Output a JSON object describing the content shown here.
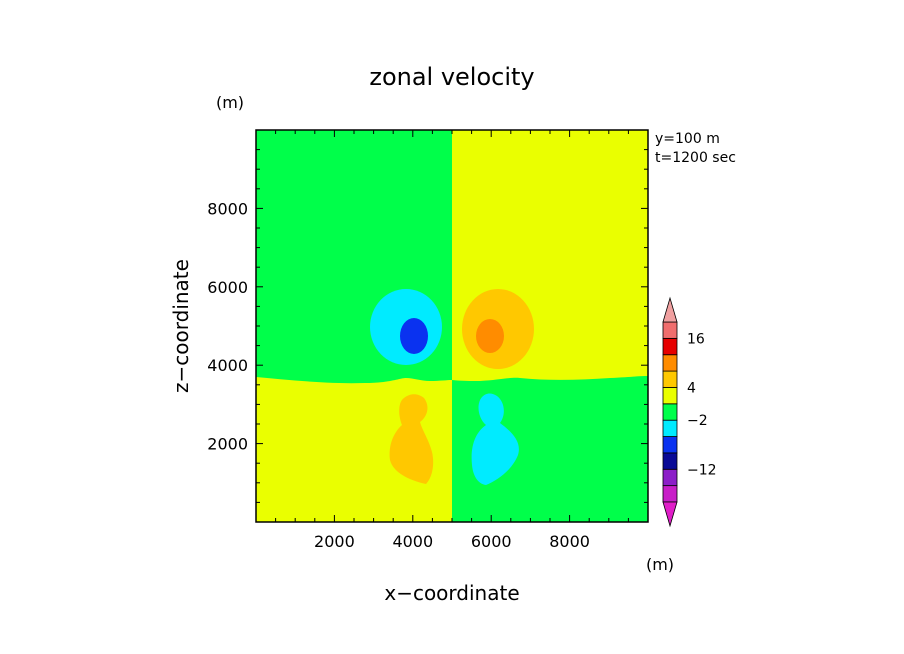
{
  "chart_data": {
    "type": "heatmap",
    "title": "zonal velocity",
    "xlabel": "x−coordinate",
    "ylabel": "z−coordinate",
    "xunit": "(m)",
    "yunit": "(m)",
    "annotations": [
      "y=100 m",
      "t=1200 sec"
    ],
    "xlim": [
      0,
      10000
    ],
    "ylim": [
      0,
      10000
    ],
    "x_ticks": [
      2000,
      4000,
      6000,
      8000
    ],
    "y_ticks": [
      2000,
      4000,
      6000,
      8000
    ],
    "colorbar": {
      "levels": [
        -20,
        -16,
        -12,
        -8,
        -4,
        -2,
        0,
        4,
        8,
        12,
        16,
        20
      ],
      "labels": [
        {
          "value": 16,
          "text": "16"
        },
        {
          "value": 4,
          "text": "4"
        },
        {
          "value": -2,
          "text": "−2"
        },
        {
          "value": -12,
          "text": "−12"
        }
      ],
      "bins": [
        {
          "range": "<-20",
          "color": "#e01ec8"
        },
        {
          "range": "-20..-16",
          "color": "#c81ec8"
        },
        {
          "range": "-16..-12",
          "color": "#8c1ec8"
        },
        {
          "range": "-12..-8",
          "color": "#0a0a96"
        },
        {
          "range": "-8..-4",
          "color": "#0a32f0"
        },
        {
          "range": "-4..-2",
          "color": "#00ebff"
        },
        {
          "range": "-2..0",
          "color": "#00ff4a"
        },
        {
          "range": "0..4",
          "color": "#eaff00"
        },
        {
          "range": "4..8",
          "color": "#ffc800"
        },
        {
          "range": "8..12",
          "color": "#ff8c00"
        },
        {
          "range": "12..16",
          "color": "#e60000"
        },
        {
          "range": "16..20",
          "color": "#f06e6e"
        },
        {
          "range": ">20",
          "color": "#f0a0a0"
        }
      ]
    },
    "regions": [
      {
        "name": "upper-left",
        "bin": "-2..0"
      },
      {
        "name": "upper-right",
        "bin": "0..4"
      },
      {
        "name": "lower-left",
        "bin": "0..4"
      },
      {
        "name": "lower-right",
        "bin": "-2..0"
      },
      {
        "name": "neg-vortex-outer",
        "bin": "-4..-2"
      },
      {
        "name": "neg-vortex-core",
        "bin": "-8..-4"
      },
      {
        "name": "pos-vortex-outer",
        "bin": "4..8"
      },
      {
        "name": "pos-vortex-core",
        "bin": "8..12"
      },
      {
        "name": "lower-left-blob",
        "bin": "4..8"
      },
      {
        "name": "lower-right-blob",
        "bin": "-4..-2"
      }
    ]
  }
}
